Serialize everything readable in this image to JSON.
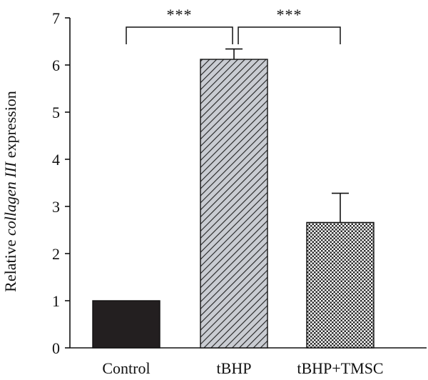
{
  "chart_data": {
    "type": "bar",
    "categories": [
      "Control",
      "tBHP",
      "tBHP+TMSC"
    ],
    "values": [
      1.0,
      6.12,
      2.66
    ],
    "errors": [
      0.0,
      0.22,
      0.62
    ],
    "ylabel": {
      "prefix": "Relative ",
      "italic": "collagen III",
      "suffix": " expression"
    },
    "ylim": [
      0,
      7
    ],
    "yticks": [
      "0",
      "1",
      "2",
      "3",
      "4",
      "5",
      "6",
      "7"
    ],
    "grid": false,
    "bar_styles": [
      {
        "pattern": "solid",
        "fill": "#231f20"
      },
      {
        "pattern": "diagonal-stripes",
        "fill": "#c9ccd2",
        "stroke": "#222222"
      },
      {
        "pattern": "checker",
        "fill": "#ffffff",
        "stroke": "#333333"
      }
    ],
    "significance": [
      {
        "from": 0,
        "to": 1,
        "label": "***"
      },
      {
        "from": 1,
        "to": 2,
        "label": "***"
      }
    ]
  }
}
